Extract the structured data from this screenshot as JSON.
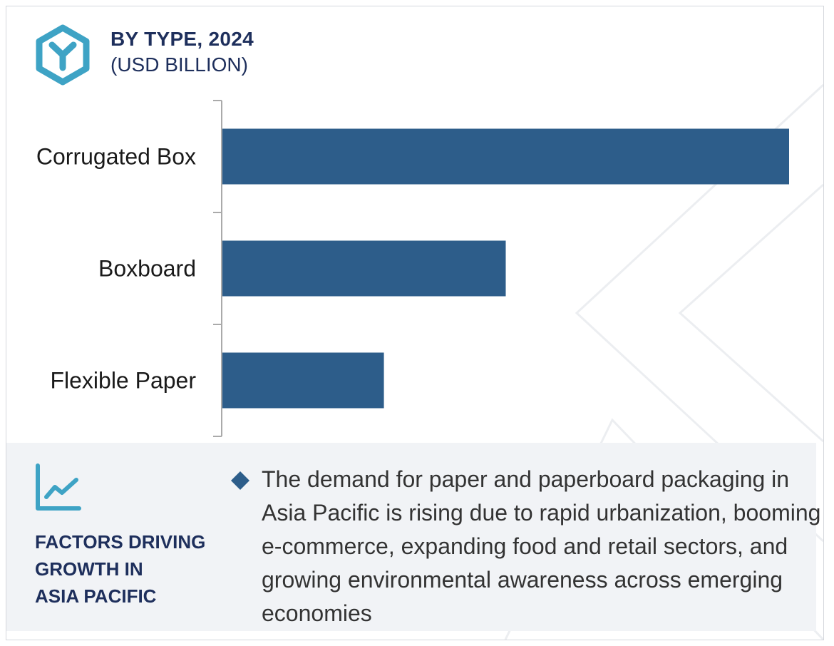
{
  "header": {
    "title": "BY TYPE, 2024",
    "subtitle": "(USD BILLION)",
    "logo_icon": "hexagon-y-icon"
  },
  "colors": {
    "bar": "#2d5d8a",
    "logo": "#3ea3c5",
    "heading": "#1e2f5c",
    "panel_bg": "#f1f3f6"
  },
  "chart_data": {
    "type": "bar",
    "orientation": "horizontal",
    "categories": [
      "Corrugated Box",
      "Boxboard",
      "Flexible Paper"
    ],
    "values": [
      100,
      50,
      28.5
    ],
    "value_note_hidden": true,
    "title": "BY TYPE, 2024",
    "subtitle": "(USD BILLION)",
    "xlabel": "",
    "ylabel": "",
    "xlim": [
      0,
      100
    ],
    "grid": false,
    "legend": "none"
  },
  "factors": {
    "icon": "trend-line-chart-icon",
    "title_lines": [
      "FACTORS DRIVING",
      "GROWTH IN",
      "ASIA PACIFIC"
    ],
    "bullet_icon": "diamond-bullet-icon",
    "text": "The demand for paper and paperboard packaging in Asia Pacific is rising due to rapid urbanization, booming e-commerce, expanding food and retail sectors, and growing environmental awareness across emerging economies"
  }
}
